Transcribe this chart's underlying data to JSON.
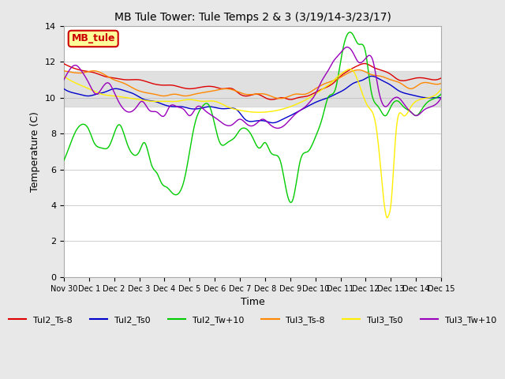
{
  "title": "MB Tule Tower: Tule Temps 2 & 3 (3/19/14-3/23/17)",
  "xlabel": "Time",
  "ylabel": "Temperature (C)",
  "ylim": [
    0,
    14
  ],
  "yticks": [
    0,
    2,
    4,
    6,
    8,
    10,
    12,
    14
  ],
  "bg_color": "#e8e8e8",
  "plot_bg_color": "#ffffff",
  "legend_label": "MB_tule",
  "legend_bg": "#ffff99",
  "legend_border": "#cc0000",
  "series_colors": {
    "Tul2_Ts-8": "#dd0000",
    "Tul2_Ts0": "#0000cc",
    "Tul2_Tw+10": "#00cc00",
    "Tul3_Ts-8": "#ff8800",
    "Tul3_Ts0": "#ffee00",
    "Tul3_Tw+10": "#9900bb"
  },
  "xtick_labels": [
    "Nov 30",
    "Dec 1",
    "Dec 2",
    "Dec 3",
    "Dec 4",
    "Dec 5",
    "Dec 6",
    "Dec 7",
    "Dec 8",
    "Dec 9",
    "Dec 10",
    "Dec 11",
    "Dec 12",
    "Dec 13",
    "Dec 14",
    "Dec 15"
  ],
  "shaded_band": [
    9.5,
    11.5
  ],
  "linewidth": 1.0
}
